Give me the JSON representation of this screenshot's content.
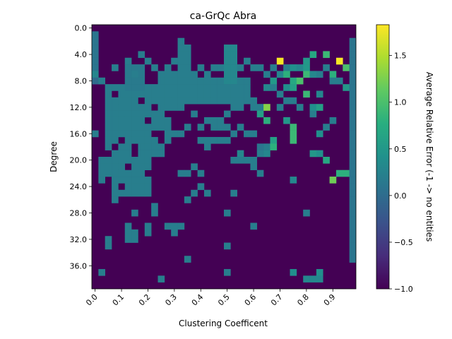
{
  "chart_data": {
    "type": "heatmap",
    "title": "ca-GrQc Abra",
    "xlabel": "Clustering Coefficent",
    "ylabel": "Degree",
    "colorbar_label": "Average Relative Error (-1 -> no entities",
    "colormap": "viridis",
    "vmin": -1.0,
    "vmax": 1.83,
    "background_value": -1.0,
    "grid": false,
    "n_cols": 40,
    "n_rows": 40,
    "x_ticks": [
      {
        "col": 0,
        "label": "0.0"
      },
      {
        "col": 4,
        "label": "0.1"
      },
      {
        "col": 8,
        "label": "0.2"
      },
      {
        "col": 12,
        "label": "0.3"
      },
      {
        "col": 16,
        "label": "0.4"
      },
      {
        "col": 20,
        "label": "0.5"
      },
      {
        "col": 24,
        "label": "0.6"
      },
      {
        "col": 28,
        "label": "0.7"
      },
      {
        "col": 32,
        "label": "0.8"
      },
      {
        "col": 36,
        "label": "0.9"
      }
    ],
    "y_ticks": [
      {
        "row": 0,
        "label": "0.0"
      },
      {
        "row": 4,
        "label": "4.0"
      },
      {
        "row": 8,
        "label": "8.0"
      },
      {
        "row": 12,
        "label": "12.0"
      },
      {
        "row": 16,
        "label": "16.0"
      },
      {
        "row": 20,
        "label": "20.0"
      },
      {
        "row": 24,
        "label": "24.0"
      },
      {
        "row": 28,
        "label": "28.0"
      },
      {
        "row": 32,
        "label": "32.0"
      },
      {
        "row": 36,
        "label": "36.0"
      }
    ],
    "colorbar_ticks": [
      {
        "value": -1.0,
        "label": "−1.0"
      },
      {
        "value": -0.5,
        "label": "−0.5"
      },
      {
        "value": 0.0,
        "label": "0.0"
      },
      {
        "value": 0.5,
        "label": "0.5"
      },
      {
        "value": 1.0,
        "label": "1.0"
      },
      {
        "value": 1.5,
        "label": "1.5"
      }
    ],
    "cells": [
      [
        0,
        1,
        0.1
      ],
      [
        0,
        2,
        0.1
      ],
      [
        0,
        3,
        0.1
      ],
      [
        0,
        4,
        0.1
      ],
      [
        0,
        5,
        0.1
      ],
      [
        0,
        6,
        0.1
      ],
      [
        0,
        7,
        0.3
      ],
      [
        0,
        8,
        0.0
      ],
      [
        39,
        2,
        0.1
      ],
      [
        39,
        3,
        0.1
      ],
      [
        39,
        4,
        0.1
      ],
      [
        39,
        5,
        0.1
      ],
      [
        39,
        6,
        0.1
      ],
      [
        39,
        7,
        0.1
      ],
      [
        39,
        8,
        0.1
      ],
      [
        39,
        9,
        0.1
      ],
      [
        39,
        10,
        0.1
      ],
      [
        39,
        11,
        0.1
      ],
      [
        39,
        12,
        0.1
      ],
      [
        39,
        13,
        0.1
      ],
      [
        39,
        14,
        0.1
      ],
      [
        39,
        15,
        0.1
      ],
      [
        39,
        16,
        0.1
      ],
      [
        39,
        17,
        0.1
      ],
      [
        39,
        18,
        0.1
      ],
      [
        39,
        19,
        0.1
      ],
      [
        39,
        20,
        0.1
      ],
      [
        39,
        21,
        0.1
      ],
      [
        39,
        22,
        0.1
      ],
      [
        39,
        23,
        0.1
      ],
      [
        39,
        24,
        0.1
      ],
      [
        39,
        25,
        0.1
      ],
      [
        39,
        26,
        0.1
      ],
      [
        39,
        27,
        0.1
      ],
      [
        39,
        28,
        0.1
      ],
      [
        39,
        29,
        0.1
      ],
      [
        39,
        30,
        0.1
      ],
      [
        39,
        31,
        0.1
      ],
      [
        39,
        32,
        0.1
      ],
      [
        39,
        33,
        0.1
      ],
      [
        39,
        34,
        0.1
      ],
      [
        39,
        35,
        0.1
      ],
      [
        38,
        9,
        0.5
      ],
      [
        37,
        22,
        0.8
      ],
      [
        38,
        22,
        0.8
      ],
      [
        36,
        23,
        1.2
      ],
      [
        28,
        5,
        1.8
      ],
      [
        37,
        5,
        1.8
      ],
      [
        38,
        6,
        1.0
      ],
      [
        36,
        7,
        0.8
      ],
      [
        33,
        4,
        0.7
      ],
      [
        35,
        4,
        0.9
      ],
      [
        29,
        7,
        0.8
      ],
      [
        30,
        6,
        0.4
      ],
      [
        32,
        5,
        0.5
      ],
      [
        32,
        6,
        0.5
      ],
      [
        32,
        7,
        0.9
      ],
      [
        30,
        8,
        0.7
      ],
      [
        31,
        8,
        1.0
      ],
      [
        30,
        9,
        0.6
      ],
      [
        29,
        9,
        0.4
      ],
      [
        27,
        8,
        0.5
      ],
      [
        26,
        9,
        0.3
      ],
      [
        32,
        10,
        0.9
      ],
      [
        34,
        10,
        0.3
      ],
      [
        33,
        12,
        0.4
      ],
      [
        34,
        12,
        0.6
      ],
      [
        26,
        12,
        1.3
      ],
      [
        25,
        13,
        0.6
      ],
      [
        26,
        14,
        0.8
      ],
      [
        29,
        14,
        0.5
      ],
      [
        30,
        15,
        0.9
      ],
      [
        30,
        16,
        0.9
      ],
      [
        30,
        17,
        0.9
      ],
      [
        34,
        16,
        0.4
      ],
      [
        34,
        19,
        0.4
      ],
      [
        35,
        20,
        0.7
      ],
      [
        33,
        19,
        0.5
      ],
      [
        27,
        18,
        0.8
      ],
      [
        26,
        18,
        0.2
      ],
      [
        26,
        19,
        0.3
      ],
      [
        25,
        18,
        0.1
      ],
      [
        25,
        19,
        0.2
      ],
      [
        25,
        22,
        0.2
      ],
      [
        24,
        20,
        0.2
      ],
      [
        24,
        21,
        0.2
      ],
      [
        22,
        19,
        0.3
      ],
      [
        22,
        20,
        0.2
      ],
      [
        27,
        17,
        0.6
      ],
      [
        30,
        23,
        0.3
      ],
      [
        34,
        37,
        0.4
      ],
      [
        30,
        37,
        0.4
      ],
      [
        33,
        38,
        0.3
      ],
      [
        34,
        38,
        0.3
      ],
      [
        32,
        38,
        0.3
      ],
      [
        32,
        28,
        0.2
      ],
      [
        20,
        28,
        0.2
      ],
      [
        21,
        25,
        0.2
      ],
      [
        24,
        30,
        0.2
      ],
      [
        20,
        33,
        0.2
      ],
      [
        20,
        37,
        0.2
      ],
      [
        16,
        24,
        0.2
      ],
      [
        17,
        25,
        0.2
      ],
      [
        15,
        25,
        0.2
      ],
      [
        14,
        26,
        0.2
      ],
      [
        14,
        35,
        0.2
      ],
      [
        13,
        30,
        0.2
      ],
      [
        12,
        30,
        0.2
      ],
      [
        12,
        31,
        0.2
      ],
      [
        11,
        30,
        0.2
      ],
      [
        8,
        30,
        0.2
      ],
      [
        8,
        31,
        0.2
      ],
      [
        6,
        32,
        0.2
      ],
      [
        6,
        31,
        0.2
      ],
      [
        5,
        32,
        0.2
      ],
      [
        5,
        31,
        0.2
      ],
      [
        5,
        30,
        0.2
      ],
      [
        2,
        32,
        0.2
      ],
      [
        2,
        33,
        0.2
      ],
      [
        1,
        37,
        0.2
      ],
      [
        10,
        38,
        0.2
      ],
      [
        9,
        27,
        0.2
      ],
      [
        9,
        28,
        0.2
      ],
      [
        6,
        28,
        0.2
      ],
      [
        7,
        24,
        0.2
      ],
      [
        7,
        25,
        0.2
      ],
      [
        3,
        26,
        0.2
      ],
      [
        0,
        16,
        0.2
      ],
      [
        2,
        15,
        0.2
      ],
      [
        3,
        23,
        0.2
      ],
      [
        3,
        24,
        0.2
      ],
      [
        21,
        16,
        0.2
      ],
      [
        22,
        15,
        0.2
      ],
      [
        23,
        16,
        0.2
      ],
      [
        24,
        16,
        0.2
      ],
      [
        23,
        20,
        0.2
      ],
      [
        21,
        20,
        0.2
      ],
      [
        16,
        17,
        0.2
      ],
      [
        17,
        17,
        0.2
      ],
      [
        17,
        18,
        0.2
      ],
      [
        18,
        17,
        0.2
      ],
      [
        19,
        17,
        0.2
      ],
      [
        20,
        17,
        0.2
      ],
      [
        18,
        14,
        0.2
      ],
      [
        19,
        15,
        0.2
      ],
      [
        18,
        15,
        0.2
      ],
      [
        13,
        22,
        0.2
      ],
      [
        14,
        22,
        0.2
      ],
      [
        15,
        21,
        0.2
      ],
      [
        16,
        22,
        0.2
      ]
    ],
    "regions": [
      {
        "cols": [
          2,
          11
        ],
        "rows": [
          9,
          19
        ],
        "value": 0.2
      },
      {
        "cols": [
          12,
          23
        ],
        "rows": [
          8,
          11
        ],
        "value": 0.2
      },
      {
        "cols": [
          1,
          6
        ],
        "rows": [
          20,
          23
        ],
        "value": 0.2
      },
      {
        "cols": [
          3,
          8
        ],
        "rows": [
          20,
          25
        ],
        "value": 0.2
      },
      {
        "cols": [
          10,
          13
        ],
        "rows": [
          7,
          12
        ],
        "value": 0.2
      },
      {
        "cols": [
          5,
          7
        ],
        "rows": [
          6,
          9
        ],
        "value": 0.15
      },
      {
        "cols": [
          13,
          14
        ],
        "rows": [
          3,
          9
        ],
        "value": 0.2
      },
      {
        "cols": [
          20,
          21
        ],
        "rows": [
          3,
          8
        ],
        "value": 0.3
      }
    ],
    "holes": [
      [
        3,
        10
      ],
      [
        7,
        11
      ],
      [
        9,
        12
      ],
      [
        11,
        13
      ],
      [
        8,
        14
      ],
      [
        9,
        16
      ],
      [
        10,
        16
      ],
      [
        4,
        17
      ],
      [
        3,
        18
      ],
      [
        6,
        19
      ],
      [
        11,
        19
      ],
      [
        2,
        19
      ],
      [
        5,
        21
      ],
      [
        8,
        22
      ],
      [
        4,
        24
      ],
      [
        7,
        25
      ],
      [
        2,
        23
      ],
      [
        10,
        17
      ],
      [
        6,
        18
      ],
      [
        11,
        18
      ]
    ],
    "sparse": [
      [
        1,
        8,
        0.2
      ],
      [
        2,
        9,
        0.2
      ],
      [
        3,
        6,
        0.2
      ],
      [
        5,
        5,
        0.2
      ],
      [
        6,
        7,
        0.2
      ],
      [
        7,
        4,
        0.2
      ],
      [
        8,
        5,
        0.2
      ],
      [
        9,
        6,
        0.2
      ],
      [
        11,
        6,
        0.2
      ],
      [
        12,
        5,
        0.2
      ],
      [
        13,
        2,
        0.2
      ],
      [
        15,
        7,
        0.2
      ],
      [
        16,
        6,
        0.2
      ],
      [
        17,
        7,
        0.2
      ],
      [
        18,
        6,
        0.2
      ],
      [
        19,
        6,
        0.2
      ],
      [
        22,
        6,
        0.2
      ],
      [
        23,
        5,
        0.2
      ],
      [
        24,
        6,
        0.2
      ],
      [
        25,
        6,
        0.2
      ],
      [
        26,
        7,
        0.2
      ],
      [
        27,
        6,
        0.2
      ],
      [
        28,
        7,
        0.3
      ],
      [
        29,
        6,
        0.2
      ],
      [
        31,
        6,
        0.3
      ],
      [
        33,
        7,
        0.3
      ],
      [
        34,
        7,
        0.2
      ],
      [
        35,
        6,
        0.2
      ],
      [
        36,
        8,
        0.2
      ],
      [
        37,
        8,
        0.2
      ],
      [
        24,
        11,
        0.2
      ],
      [
        23,
        11,
        0.2
      ],
      [
        22,
        12,
        0.2
      ],
      [
        21,
        12,
        0.2
      ],
      [
        20,
        13,
        0.2
      ],
      [
        19,
        14,
        0.2
      ],
      [
        17,
        14,
        0.2
      ],
      [
        15,
        13,
        0.2
      ],
      [
        14,
        15,
        0.2
      ],
      [
        16,
        15,
        0.2
      ],
      [
        13,
        16,
        0.2
      ],
      [
        12,
        16,
        0.2
      ],
      [
        20,
        15,
        0.2
      ],
      [
        24,
        12,
        0.2
      ],
      [
        25,
        12,
        0.2
      ],
      [
        27,
        9,
        0.2
      ],
      [
        28,
        10,
        0.2
      ],
      [
        30,
        11,
        0.2
      ],
      [
        31,
        12,
        0.2
      ],
      [
        33,
        13,
        0.2
      ],
      [
        35,
        15,
        0.2
      ],
      [
        36,
        14,
        0.2
      ],
      [
        29,
        11,
        0.2
      ],
      [
        28,
        12,
        0.2
      ]
    ]
  }
}
